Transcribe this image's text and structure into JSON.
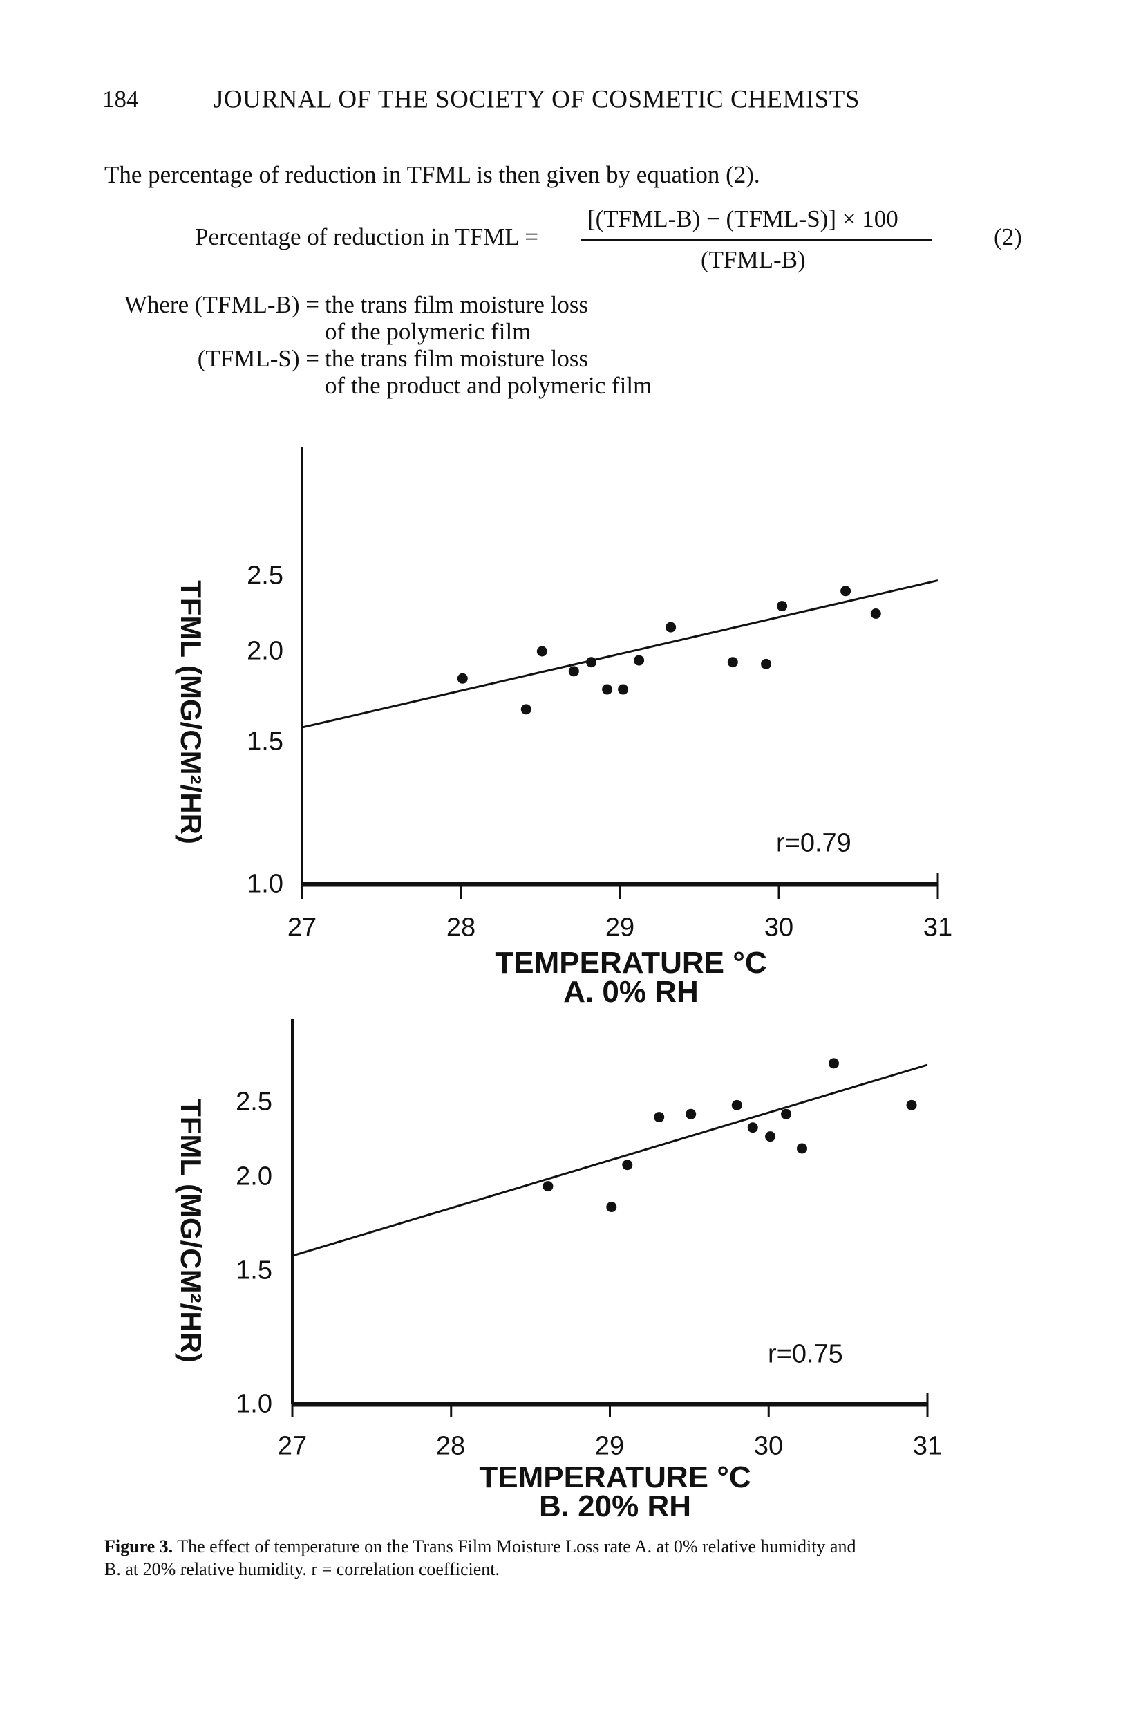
{
  "header": {
    "page_number": "184",
    "journal": "JOURNAL OF THE SOCIETY OF COSMETIC CHEMISTS"
  },
  "body": {
    "intro": "The percentage of reduction in TFML is then given by equation (2).",
    "equation": {
      "lhs": "Percentage of reduction in TFML =",
      "numerator": "[(TFML-B) − (TFML-S)] × 100",
      "denominator": "(TFML-B)",
      "number": "(2)"
    },
    "where": [
      {
        "term": "Where (TFML-B) =",
        "def": "the trans film moisture loss"
      },
      {
        "term": "",
        "def": "of the polymeric film"
      },
      {
        "term": "(TFML-S) =",
        "def": "the trans film moisture loss"
      },
      {
        "term": "",
        "def": "of the product and polymeric film"
      }
    ]
  },
  "chart_data": [
    {
      "type": "scatter",
      "title": "A. 0% RH",
      "xlabel": "TEMPERATURE °C",
      "ylabel": "TFML (MG/CM²/HR)",
      "xlim": [
        27,
        31
      ],
      "ylim": [
        1.0,
        2.8
      ],
      "xticks": [
        "27",
        "28",
        "29",
        "30",
        "31"
      ],
      "yticks": [
        "1.0",
        "1.5",
        "2.0",
        "2.5"
      ],
      "annotation": "r=0.79",
      "grid": false,
      "points": [
        [
          28.01,
          1.85
        ],
        [
          28.41,
          1.68
        ],
        [
          28.51,
          2.0
        ],
        [
          28.71,
          1.89
        ],
        [
          28.82,
          1.94
        ],
        [
          28.92,
          1.79
        ],
        [
          29.02,
          1.79
        ],
        [
          29.12,
          1.95
        ],
        [
          29.32,
          2.16
        ],
        [
          29.71,
          1.94
        ],
        [
          29.92,
          1.93
        ],
        [
          30.02,
          2.3
        ],
        [
          30.42,
          2.4
        ],
        [
          30.61,
          2.25
        ]
      ],
      "fit_line": [
        [
          27,
          1.58
        ],
        [
          31,
          2.47
        ]
      ]
    },
    {
      "type": "scatter",
      "title": "B. 20% RH",
      "xlabel": "TEMPERATURE °C",
      "ylabel": "TFML (MG/CM²/HR)",
      "xlim": [
        27,
        31
      ],
      "ylim": [
        1.0,
        2.9
      ],
      "xticks": [
        "27",
        "28",
        "29",
        "30",
        "31"
      ],
      "yticks": [
        "1.0",
        "1.5",
        "2.0",
        "2.5"
      ],
      "annotation": "r=0.75",
      "grid": false,
      "points": [
        [
          28.61,
          1.95
        ],
        [
          29.01,
          1.84
        ],
        [
          29.11,
          2.08
        ],
        [
          29.31,
          2.4
        ],
        [
          29.51,
          2.42
        ],
        [
          29.8,
          2.48
        ],
        [
          29.9,
          2.33
        ],
        [
          30.01,
          2.27
        ],
        [
          30.11,
          2.42
        ],
        [
          30.21,
          2.19
        ],
        [
          30.41,
          2.76
        ],
        [
          30.9,
          2.48
        ]
      ],
      "fit_line": [
        [
          27,
          1.58
        ],
        [
          31,
          2.75
        ]
      ]
    }
  ],
  "caption": {
    "label": "Figure 3.",
    "line1": " The effect of temperature on the Trans Film Moisture Loss rate A. at 0% relative humidity and",
    "line2": "B. at 20% relative humidity. r = correlation coefficient."
  }
}
